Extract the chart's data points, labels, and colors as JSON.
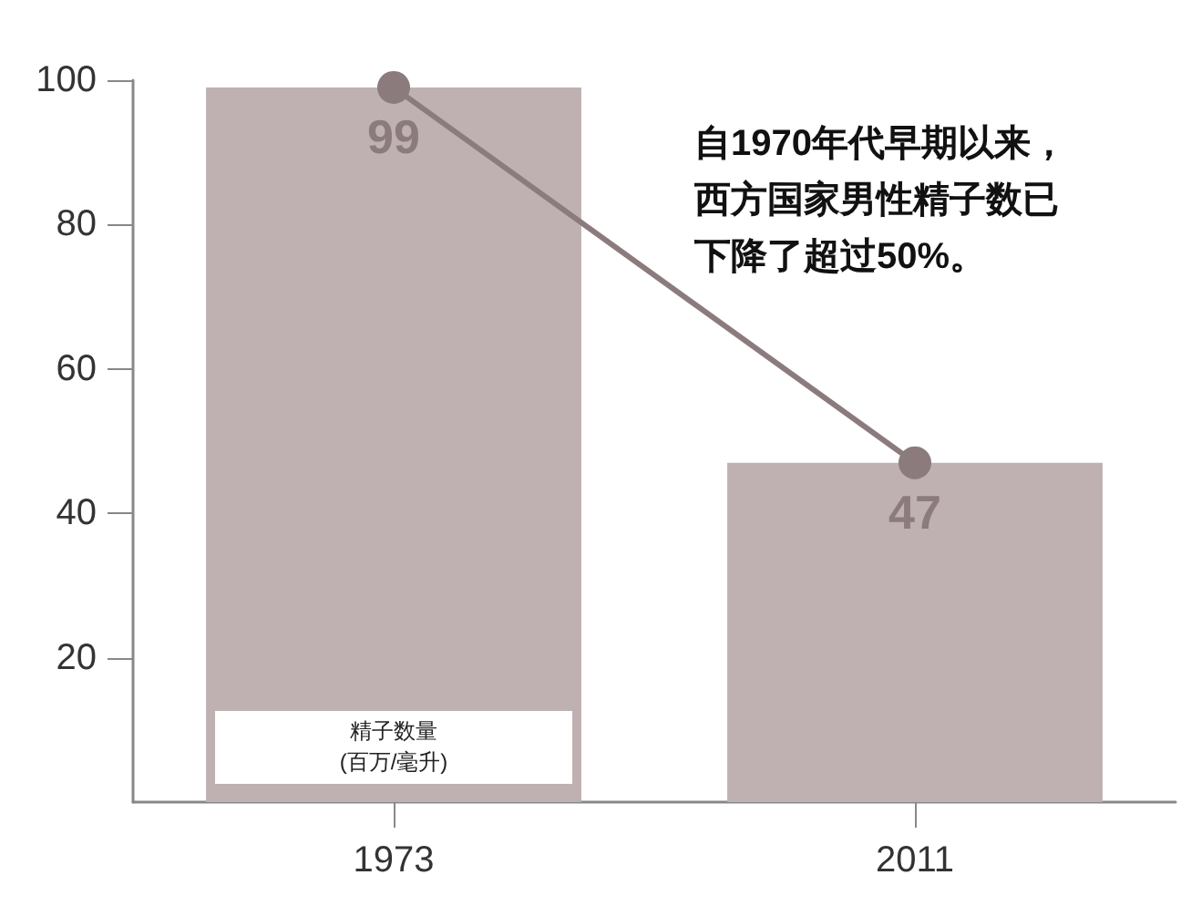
{
  "chart_data": {
    "type": "bar",
    "categories": [
      "1973",
      "2011"
    ],
    "series": [
      {
        "color": "#bfb1b1",
        "values": [
          99,
          47
        ],
        "data_labels": true
      },
      {
        "type": "line",
        "color": "#8c7b7d",
        "values": [
          99,
          47
        ],
        "marker": "circle",
        "line_style": "solid"
      }
    ],
    "ylim": [
      0,
      100
    ],
    "yticks": [
      20,
      40,
      60,
      80,
      100
    ],
    "grid": false,
    "ylabel": "精子数量\n(百万/毫升)",
    "annotations": [
      "自1970年代早期以来，西方国家男性精子数已下降了超过50%。"
    ]
  }
}
